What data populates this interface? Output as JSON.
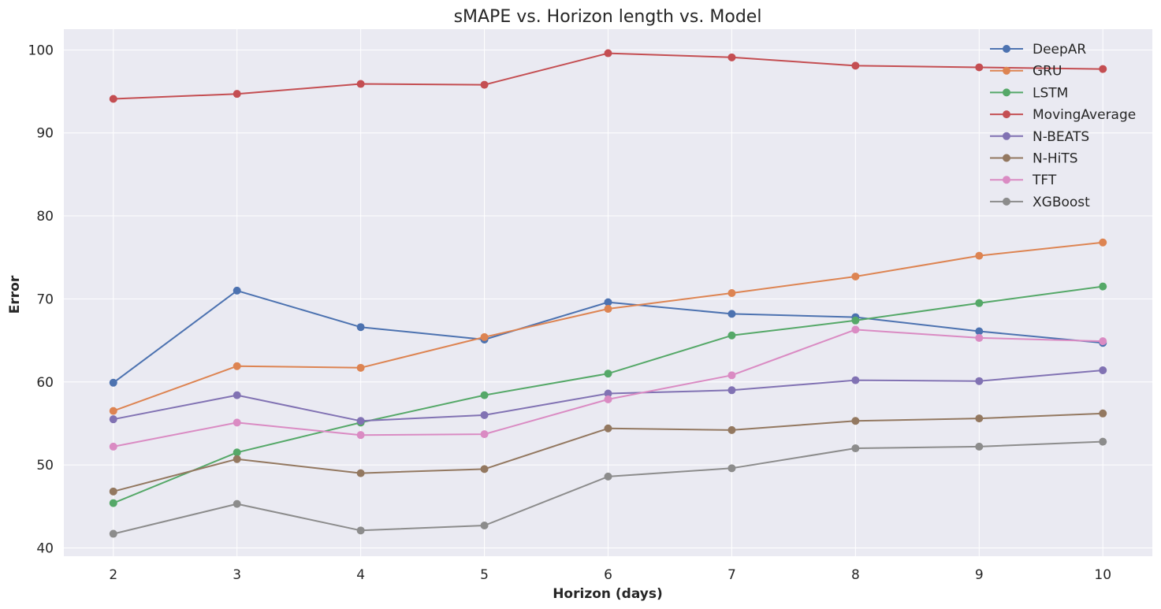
{
  "chart_data": {
    "type": "line",
    "title": "sMAPE vs. Horizon length vs. Model",
    "xlabel": "Horizon (days)",
    "ylabel": "Error",
    "x": [
      2,
      3,
      4,
      5,
      6,
      7,
      8,
      9,
      10
    ],
    "xlim": [
      1.6,
      10.4
    ],
    "ylim": [
      39,
      102.5
    ],
    "xticks": [
      2,
      3,
      4,
      5,
      6,
      7,
      8,
      9,
      10
    ],
    "yticks": [
      40,
      50,
      60,
      70,
      80,
      90,
      100
    ],
    "grid": true,
    "legend_position": "top-right",
    "background_color": "#eaeaf2",
    "grid_color": "#ffffff",
    "series": [
      {
        "name": "DeepAR",
        "color": "#4c72b0",
        "values": [
          59.9,
          71.0,
          66.6,
          65.1,
          69.6,
          68.2,
          67.8,
          66.1,
          64.7
        ]
      },
      {
        "name": "GRU",
        "color": "#dd8452",
        "values": [
          56.5,
          61.9,
          61.7,
          65.4,
          68.8,
          70.7,
          72.7,
          75.2,
          76.8
        ]
      },
      {
        "name": "LSTM",
        "color": "#55a868",
        "values": [
          45.4,
          51.5,
          55.1,
          58.4,
          61.0,
          65.6,
          67.4,
          69.5,
          71.5
        ]
      },
      {
        "name": "MovingAverage",
        "color": "#c44e52",
        "values": [
          94.1,
          94.7,
          95.9,
          95.8,
          99.6,
          99.1,
          98.1,
          97.9,
          97.7
        ]
      },
      {
        "name": "N-BEATS",
        "color": "#8172b3",
        "values": [
          55.5,
          58.4,
          55.3,
          56.0,
          58.6,
          59.0,
          60.2,
          60.1,
          61.4
        ]
      },
      {
        "name": "N-HiTS",
        "color": "#937860",
        "values": [
          46.8,
          50.7,
          49.0,
          49.5,
          54.4,
          54.2,
          55.3,
          55.6,
          56.2
        ]
      },
      {
        "name": "TFT",
        "color": "#da8bc3",
        "values": [
          52.2,
          55.1,
          53.6,
          53.7,
          57.9,
          60.8,
          66.3,
          65.3,
          64.9
        ]
      },
      {
        "name": "XGBoost",
        "color": "#8c8c8c",
        "values": [
          41.7,
          45.3,
          42.1,
          42.7,
          48.6,
          49.6,
          52.0,
          52.2,
          52.8
        ]
      }
    ]
  }
}
